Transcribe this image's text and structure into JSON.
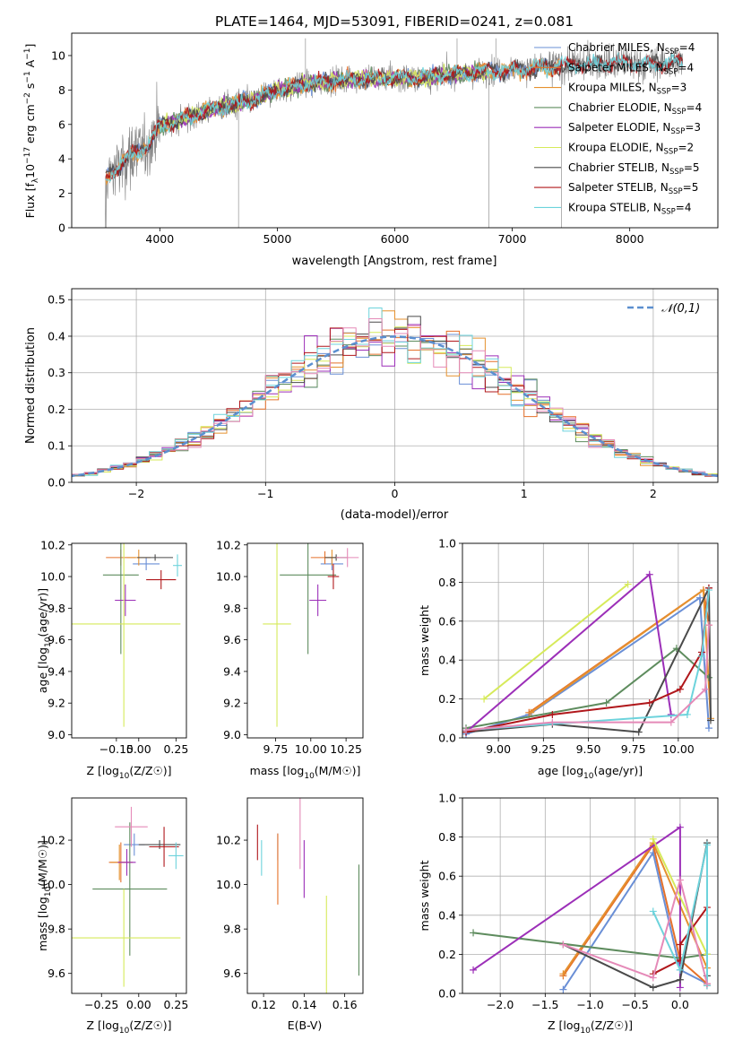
{
  "figure_title": "PLATE=1464, MJD=53091, FIBERID=0241, z=0.081",
  "colors": {
    "Chabrier MILES": "#6a8fd6",
    "Salpeter MILES": "#e5712a",
    "Kroupa MILES": "#e5912f",
    "Chabrier ELODIE": "#5e8c5e",
    "Salpeter ELODIE": "#9c2fb8",
    "Kroupa ELODIE": "#d6ea5a",
    "Chabrier STELIB": "#4a4a4a",
    "Salpeter STELIB": "#b0171b",
    "Kroupa STELIB": "#6dd3dc",
    "Gaussian": "#5b8fcf",
    "Pink": "#e58ab8",
    "data": "#808080"
  },
  "chart_data": [
    {
      "id": "spectrum",
      "type": "line",
      "xlabel": "wavelength [Angstrom, rest frame]",
      "ylabel": "Flux [f_λ 10^-17 erg cm^-2 s^-1 A^-1]",
      "ylabel_parts": [
        "Flux [f",
        "λ",
        "10",
        "−17",
        " erg cm",
        "−2",
        " s",
        "−1",
        " A",
        "−1",
        "]"
      ],
      "xlim": [
        3250,
        8750
      ],
      "ylim": [
        0,
        11.3
      ],
      "xticks": [
        "4000",
        "5000",
        "6000",
        "7000",
        "8000"
      ],
      "yticks": [
        "0",
        "2",
        "4",
        "6",
        "8",
        "10"
      ],
      "data_spectrum_trend": {
        "x": [
          3530,
          3700,
          3900,
          4000,
          4200,
          4500,
          4800,
          5000,
          5300,
          5600,
          5900,
          6200,
          6500,
          6800,
          7100,
          7400,
          7600,
          7900,
          8200,
          8450
        ],
        "y": [
          2.8,
          3.9,
          4.8,
          5.9,
          6.3,
          7.0,
          7.4,
          8.0,
          8.4,
          8.6,
          8.7,
          8.7,
          8.9,
          9.1,
          9.2,
          9.4,
          9.5,
          9.6,
          9.5,
          9.6
        ]
      },
      "legend": [
        {
          "label": "Chabrier MILES",
          "nssp": "4"
        },
        {
          "label": "Salpeter MILES",
          "nssp": "4"
        },
        {
          "label": "Kroupa MILES",
          "nssp": "3"
        },
        {
          "label": "Chabrier ELODIE",
          "nssp": "4"
        },
        {
          "label": "Salpeter ELODIE",
          "nssp": "3"
        },
        {
          "label": "Kroupa ELODIE",
          "nssp": "2"
        },
        {
          "label": "Chabrier STELIB",
          "nssp": "5"
        },
        {
          "label": "Salpeter STELIB",
          "nssp": "5"
        },
        {
          "label": "Kroupa STELIB",
          "nssp": "4"
        }
      ],
      "legend_placement": "right",
      "grid": false
    },
    {
      "id": "residuals",
      "type": "step",
      "xlabel": "(data-model)/error",
      "ylabel": "Normed distribution",
      "xlim": [
        -2.5,
        2.5
      ],
      "ylim": [
        0,
        0.53
      ],
      "xticks": [
        "−2",
        "−1",
        "0",
        "1",
        "2"
      ],
      "yticks": [
        "0.0",
        "0.1",
        "0.2",
        "0.3",
        "0.4",
        "0.5"
      ],
      "grid": true,
      "gaussian_label": "𝒩(0,1)",
      "legend_placement": "top-right"
    },
    {
      "id": "age_vs_Z",
      "type": "errorbar",
      "xlabel": "Z [log10(Z/Z☉)]",
      "ylabel": "age [log10(age/yr)]",
      "xlim": [
        -0.45,
        0.32
      ],
      "ylim": [
        8.98,
        10.21
      ],
      "xticks": [
        "−0.15",
        "0.00",
        "0.25"
      ],
      "yticks": [
        "9.0",
        "9.2",
        "9.4",
        "9.6",
        "9.8",
        "10.0",
        "10.2"
      ],
      "points": [
        {
          "name": "Chabrier MILES",
          "x": 0.05,
          "y": 10.08,
          "xerr": 0.09,
          "yerr": 0.04
        },
        {
          "name": "Salpeter MILES",
          "x": -0.12,
          "y": 10.12,
          "xerr": 0.1,
          "yerr": 0.05
        },
        {
          "name": "Kroupa MILES",
          "x": 0.0,
          "y": 10.12,
          "xerr": 0.08,
          "yerr": 0.05
        },
        {
          "name": "Chabrier ELODIE",
          "x": -0.12,
          "y": 10.01,
          "xerr": 0.12,
          "yerr": 0.5
        },
        {
          "name": "Salpeter ELODIE",
          "x": -0.09,
          "y": 9.85,
          "xerr": 0.07,
          "yerr": 0.1
        },
        {
          "name": "Kroupa ELODIE",
          "x": -0.1,
          "y": 9.7,
          "xerr": 0.38,
          "yerr": 0.65
        },
        {
          "name": "Chabrier STELIB",
          "x": 0.11,
          "y": 10.12,
          "xerr": 0.12,
          "yerr": 0.02
        },
        {
          "name": "Salpeter STELIB",
          "x": 0.15,
          "y": 9.98,
          "xerr": 0.1,
          "yerr": 0.06
        },
        {
          "name": "Kroupa STELIB",
          "x": 0.26,
          "y": 10.07,
          "xerr": 0.03,
          "yerr": 0.07
        }
      ]
    },
    {
      "id": "age_vs_mass",
      "type": "errorbar",
      "xlabel": "mass [log10(M/M☉)]",
      "ylabel": "",
      "xlim": [
        9.55,
        10.37
      ],
      "ylim": [
        8.98,
        10.21
      ],
      "xticks": [
        "9.75",
        "10.00",
        "10.25"
      ],
      "yticks": [
        "9.0",
        "9.2",
        "9.4",
        "9.6",
        "9.8",
        "10.0",
        "10.2"
      ],
      "points": [
        {
          "name": "Chabrier MILES",
          "x": 10.15,
          "y": 10.08,
          "xerr": 0.08,
          "yerr": 0.04
        },
        {
          "name": "Salpeter MILES",
          "x": 10.1,
          "y": 10.12,
          "xerr": 0.1,
          "yerr": 0.04
        },
        {
          "name": "Kroupa MILES",
          "x": 10.15,
          "y": 10.12,
          "xerr": 0.05,
          "yerr": 0.05
        },
        {
          "name": "Chabrier ELODIE",
          "x": 9.98,
          "y": 10.01,
          "xerr": 0.2,
          "yerr": 0.5
        },
        {
          "name": "Salpeter ELODIE",
          "x": 10.05,
          "y": 9.85,
          "xerr": 0.06,
          "yerr": 0.1
        },
        {
          "name": "Kroupa ELODIE",
          "x": 9.76,
          "y": 9.7,
          "xerr": 0.1,
          "yerr": 0.65
        },
        {
          "name": "Chabrier STELIB",
          "x": 10.18,
          "y": 10.12,
          "xerr": 0.08,
          "yerr": 0.02
        },
        {
          "name": "Salpeter STELIB",
          "x": 10.16,
          "y": 10.0,
          "xerr": 0.04,
          "yerr": 0.08
        },
        {
          "name": "Pink",
          "x": 10.26,
          "y": 10.12,
          "xerr": 0.08,
          "yerr": 0.06
        }
      ]
    },
    {
      "id": "weight_vs_age",
      "type": "line",
      "xlabel": "age [log10(age/yr)]",
      "ylabel": "mass weight",
      "xlim": [
        8.8,
        10.22
      ],
      "ylim": [
        0.0,
        1.0
      ],
      "xticks": [
        "9.00",
        "9.25",
        "9.50",
        "9.75",
        "10.00"
      ],
      "yticks": [
        "0.0",
        "0.2",
        "0.4",
        "0.6",
        "0.8",
        "1.0"
      ],
      "grid": true,
      "series": [
        {
          "name": "Chabrier MILES",
          "x": [
            8.82,
            9.17,
            10.12,
            10.17
          ],
          "y": [
            0.02,
            0.12,
            0.72,
            0.05
          ]
        },
        {
          "name": "Salpeter MILES",
          "x": [
            9.17,
            10.14,
            10.17
          ],
          "y": [
            0.13,
            0.76,
            0.58
          ]
        },
        {
          "name": "Kroupa MILES",
          "x": [
            9.18,
            10.14,
            10.18
          ],
          "y": [
            0.13,
            0.76,
            0.1
          ]
        },
        {
          "name": "Chabrier ELODIE",
          "x": [
            8.82,
            9.6,
            9.99,
            10.17
          ],
          "y": [
            0.05,
            0.18,
            0.46,
            0.31
          ]
        },
        {
          "name": "Salpeter ELODIE",
          "x": [
            8.82,
            9.84,
            9.96
          ],
          "y": [
            0.03,
            0.84,
            0.12
          ]
        },
        {
          "name": "Kroupa ELODIE",
          "x": [
            8.92,
            9.72
          ],
          "y": [
            0.2,
            0.79
          ]
        },
        {
          "name": "Chabrier STELIB",
          "x": [
            8.82,
            9.3,
            9.78,
            10.17,
            10.18
          ],
          "y": [
            0.03,
            0.07,
            0.03,
            0.77,
            0.09
          ]
        },
        {
          "name": "Salpeter STELIB",
          "x": [
            8.82,
            9.3,
            9.84,
            10.01,
            10.13,
            10.17
          ],
          "y": [
            0.03,
            0.12,
            0.18,
            0.25,
            0.44,
            0.77
          ]
        },
        {
          "name": "Kroupa STELIB",
          "x": [
            8.82,
            10.05,
            10.13,
            10.17
          ],
          "y": [
            0.04,
            0.12,
            0.42,
            0.76
          ]
        },
        {
          "name": "Pink",
          "x": [
            8.82,
            9.3,
            9.96,
            10.15,
            10.17
          ],
          "y": [
            0.04,
            0.08,
            0.08,
            0.25,
            0.58
          ]
        }
      ]
    },
    {
      "id": "mass_vs_Z",
      "type": "errorbar",
      "xlabel": "Z [log10(Z/Z☉)]",
      "ylabel": "mass [log10(M/M☉)]",
      "xlim": [
        -0.45,
        0.32
      ],
      "ylim": [
        9.51,
        10.39
      ],
      "xticks": [
        "−0.25",
        "0.00",
        "0.25"
      ],
      "yticks": [
        "9.6",
        "9.8",
        "10.0",
        "10.2"
      ],
      "points": [
        {
          "name": "Chabrier MILES",
          "x": -0.03,
          "y": 10.18,
          "xerr": 0.07,
          "yerr": 0.05
        },
        {
          "name": "Salpeter MILES",
          "x": -0.12,
          "y": 10.1,
          "xerr": 0.08,
          "yerr": 0.09
        },
        {
          "name": "Kroupa MILES",
          "x": -0.13,
          "y": 10.1,
          "xerr": 0.06,
          "yerr": 0.08
        },
        {
          "name": "Chabrier ELODIE",
          "x": -0.06,
          "y": 9.98,
          "xerr": 0.25,
          "yerr": 0.3
        },
        {
          "name": "Salpeter ELODIE",
          "x": -0.08,
          "y": 10.1,
          "xerr": 0.06,
          "yerr": 0.06
        },
        {
          "name": "Kroupa ELODIE",
          "x": -0.1,
          "y": 9.76,
          "xerr": 0.38,
          "yerr": 0.22
        },
        {
          "name": "Chabrier STELIB",
          "x": 0.14,
          "y": 10.18,
          "xerr": 0.14,
          "yerr": 0.02
        },
        {
          "name": "Salpeter STELIB",
          "x": 0.17,
          "y": 10.17,
          "xerr": 0.1,
          "yerr": 0.09
        },
        {
          "name": "Kroupa STELIB",
          "x": 0.25,
          "y": 10.13,
          "xerr": 0.05,
          "yerr": 0.06
        },
        {
          "name": "Pink",
          "x": -0.05,
          "y": 10.26,
          "xerr": 0.11,
          "yerr": 0.09
        }
      ]
    },
    {
      "id": "mass_vs_EBV",
      "type": "errorbar",
      "xlabel": "E(B-V)",
      "ylabel": "",
      "xlim": [
        0.112,
        0.169
      ],
      "ylim": [
        9.51,
        10.39
      ],
      "xticks": [
        "0.12",
        "0.14",
        "0.16"
      ],
      "yticks": [
        "9.6",
        "9.8",
        "10.0",
        "10.2"
      ],
      "points": [
        {
          "name": "Salpeter STELIB",
          "x": 0.117,
          "y": 10.19,
          "xerr": 0,
          "yerr": 0.08
        },
        {
          "name": "Kroupa STELIB",
          "x": 0.119,
          "y": 10.12,
          "xerr": 0,
          "yerr": 0.08
        },
        {
          "name": "Chabrier MILES",
          "x": 0.127,
          "y": 10.17,
          "xerr": 0,
          "yerr": 0.06
        },
        {
          "name": "Salpeter MILES",
          "x": 0.127,
          "y": 10.07,
          "xerr": 0,
          "yerr": 0.16
        },
        {
          "name": "Pink",
          "x": 0.138,
          "y": 10.24,
          "xerr": 0,
          "yerr": 0.17
        },
        {
          "name": "Salpeter ELODIE",
          "x": 0.14,
          "y": 10.07,
          "xerr": 0,
          "yerr": 0.13
        },
        {
          "name": "Kroupa ELODIE",
          "x": 0.151,
          "y": 9.73,
          "xerr": 0,
          "yerr": 0.22
        },
        {
          "name": "Chabrier ELODIE",
          "x": 0.167,
          "y": 9.84,
          "xerr": 0,
          "yerr": 0.25
        }
      ]
    },
    {
      "id": "weight_vs_Z",
      "type": "line",
      "xlabel": "Z [log10(Z/Z☉)]",
      "ylabel": "mass weight",
      "xlim": [
        -2.42,
        0.42
      ],
      "ylim": [
        0.0,
        1.0
      ],
      "xticks": [
        "−2.0",
        "−1.5",
        "−1.0",
        "−0.5",
        "0.0"
      ],
      "yticks": [
        "0.0",
        "0.2",
        "0.4",
        "0.6",
        "0.8",
        "1.0"
      ],
      "grid": true,
      "series": [
        {
          "name": "Chabrier MILES",
          "x": [
            -1.3,
            -0.3,
            0.0,
            0.3
          ],
          "y": [
            0.02,
            0.72,
            0.12,
            0.05
          ]
        },
        {
          "name": "Salpeter MILES",
          "x": [
            -1.3,
            -0.3,
            0.0,
            0.3
          ],
          "y": [
            0.09,
            0.76,
            0.17,
            0.05
          ]
        },
        {
          "name": "Kroupa MILES",
          "x": [
            -1.3,
            -0.3,
            0.3
          ],
          "y": [
            0.1,
            0.77,
            0.13
          ]
        },
        {
          "name": "Chabrier ELODIE",
          "x": [
            -2.3,
            0.0,
            0.3
          ],
          "y": [
            0.31,
            0.18,
            0.2
          ]
        },
        {
          "name": "Salpeter ELODIE",
          "x": [
            -2.3,
            0.0,
            0.0
          ],
          "y": [
            0.12,
            0.85,
            0.03
          ]
        },
        {
          "name": "Kroupa ELODIE",
          "x": [
            -0.3,
            0.3
          ],
          "y": [
            0.79,
            0.2
          ]
        },
        {
          "name": "Chabrier STELIB",
          "x": [
            -1.3,
            -0.3,
            0.0,
            0.3,
            0.3
          ],
          "y": [
            0.25,
            0.03,
            0.07,
            0.77,
            0.09
          ]
        },
        {
          "name": "Salpeter STELIB",
          "x": [
            -0.3,
            0.0,
            0.0,
            0.3,
            0.3
          ],
          "y": [
            0.1,
            0.17,
            0.25,
            0.44,
            0.04
          ]
        },
        {
          "name": "Kroupa STELIB",
          "x": [
            -0.3,
            0.0,
            0.3,
            0.3
          ],
          "y": [
            0.42,
            0.12,
            0.76,
            0.04
          ]
        },
        {
          "name": "Pink",
          "x": [
            -1.3,
            -0.3,
            0.0,
            0.3
          ],
          "y": [
            0.25,
            0.08,
            0.58,
            0.05
          ]
        }
      ]
    }
  ]
}
